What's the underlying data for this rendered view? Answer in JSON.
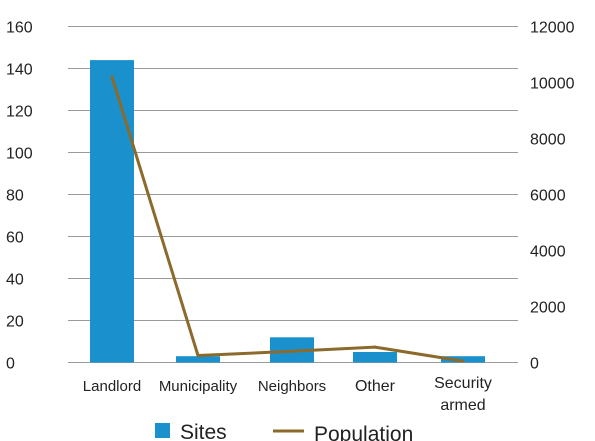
{
  "chart_data": {
    "type": "bar",
    "categories": [
      "Landlord",
      "Municipality",
      "Neighbors",
      "Other",
      "Security armed"
    ],
    "category_lines": [
      [
        "Landlord"
      ],
      [
        "Municipality"
      ],
      [
        "Neighbors"
      ],
      [
        "Other"
      ],
      [
        "Security",
        "armed"
      ]
    ],
    "series": [
      {
        "name": "Sites",
        "type": "bar",
        "axis": "left",
        "values": [
          144,
          3,
          12,
          5,
          3
        ],
        "color": "#1a91cd"
      },
      {
        "name": "Population",
        "type": "line",
        "axis": "right",
        "values": [
          10200,
          250,
          400,
          550,
          50
        ],
        "color": "#8b6a2b"
      }
    ],
    "y_left": {
      "ticks": [
        "0",
        "20",
        "40",
        "60",
        "80",
        "100",
        "120",
        "140",
        "160"
      ],
      "ylim": [
        0,
        160
      ]
    },
    "y_right": {
      "ticks": [
        "0",
        "2000",
        "4000",
        "6000",
        "8000",
        "10000",
        "12000"
      ],
      "ylim": [
        0,
        12000
      ]
    },
    "grid": true,
    "legend": {
      "position": "bottom",
      "items": [
        {
          "label": "Sites",
          "symbol": "square",
          "color": "#1a91cd"
        },
        {
          "label": "Population",
          "symbol": "line",
          "color": "#8b6a2b"
        }
      ]
    },
    "gridline_color": "#9a9a9a"
  }
}
